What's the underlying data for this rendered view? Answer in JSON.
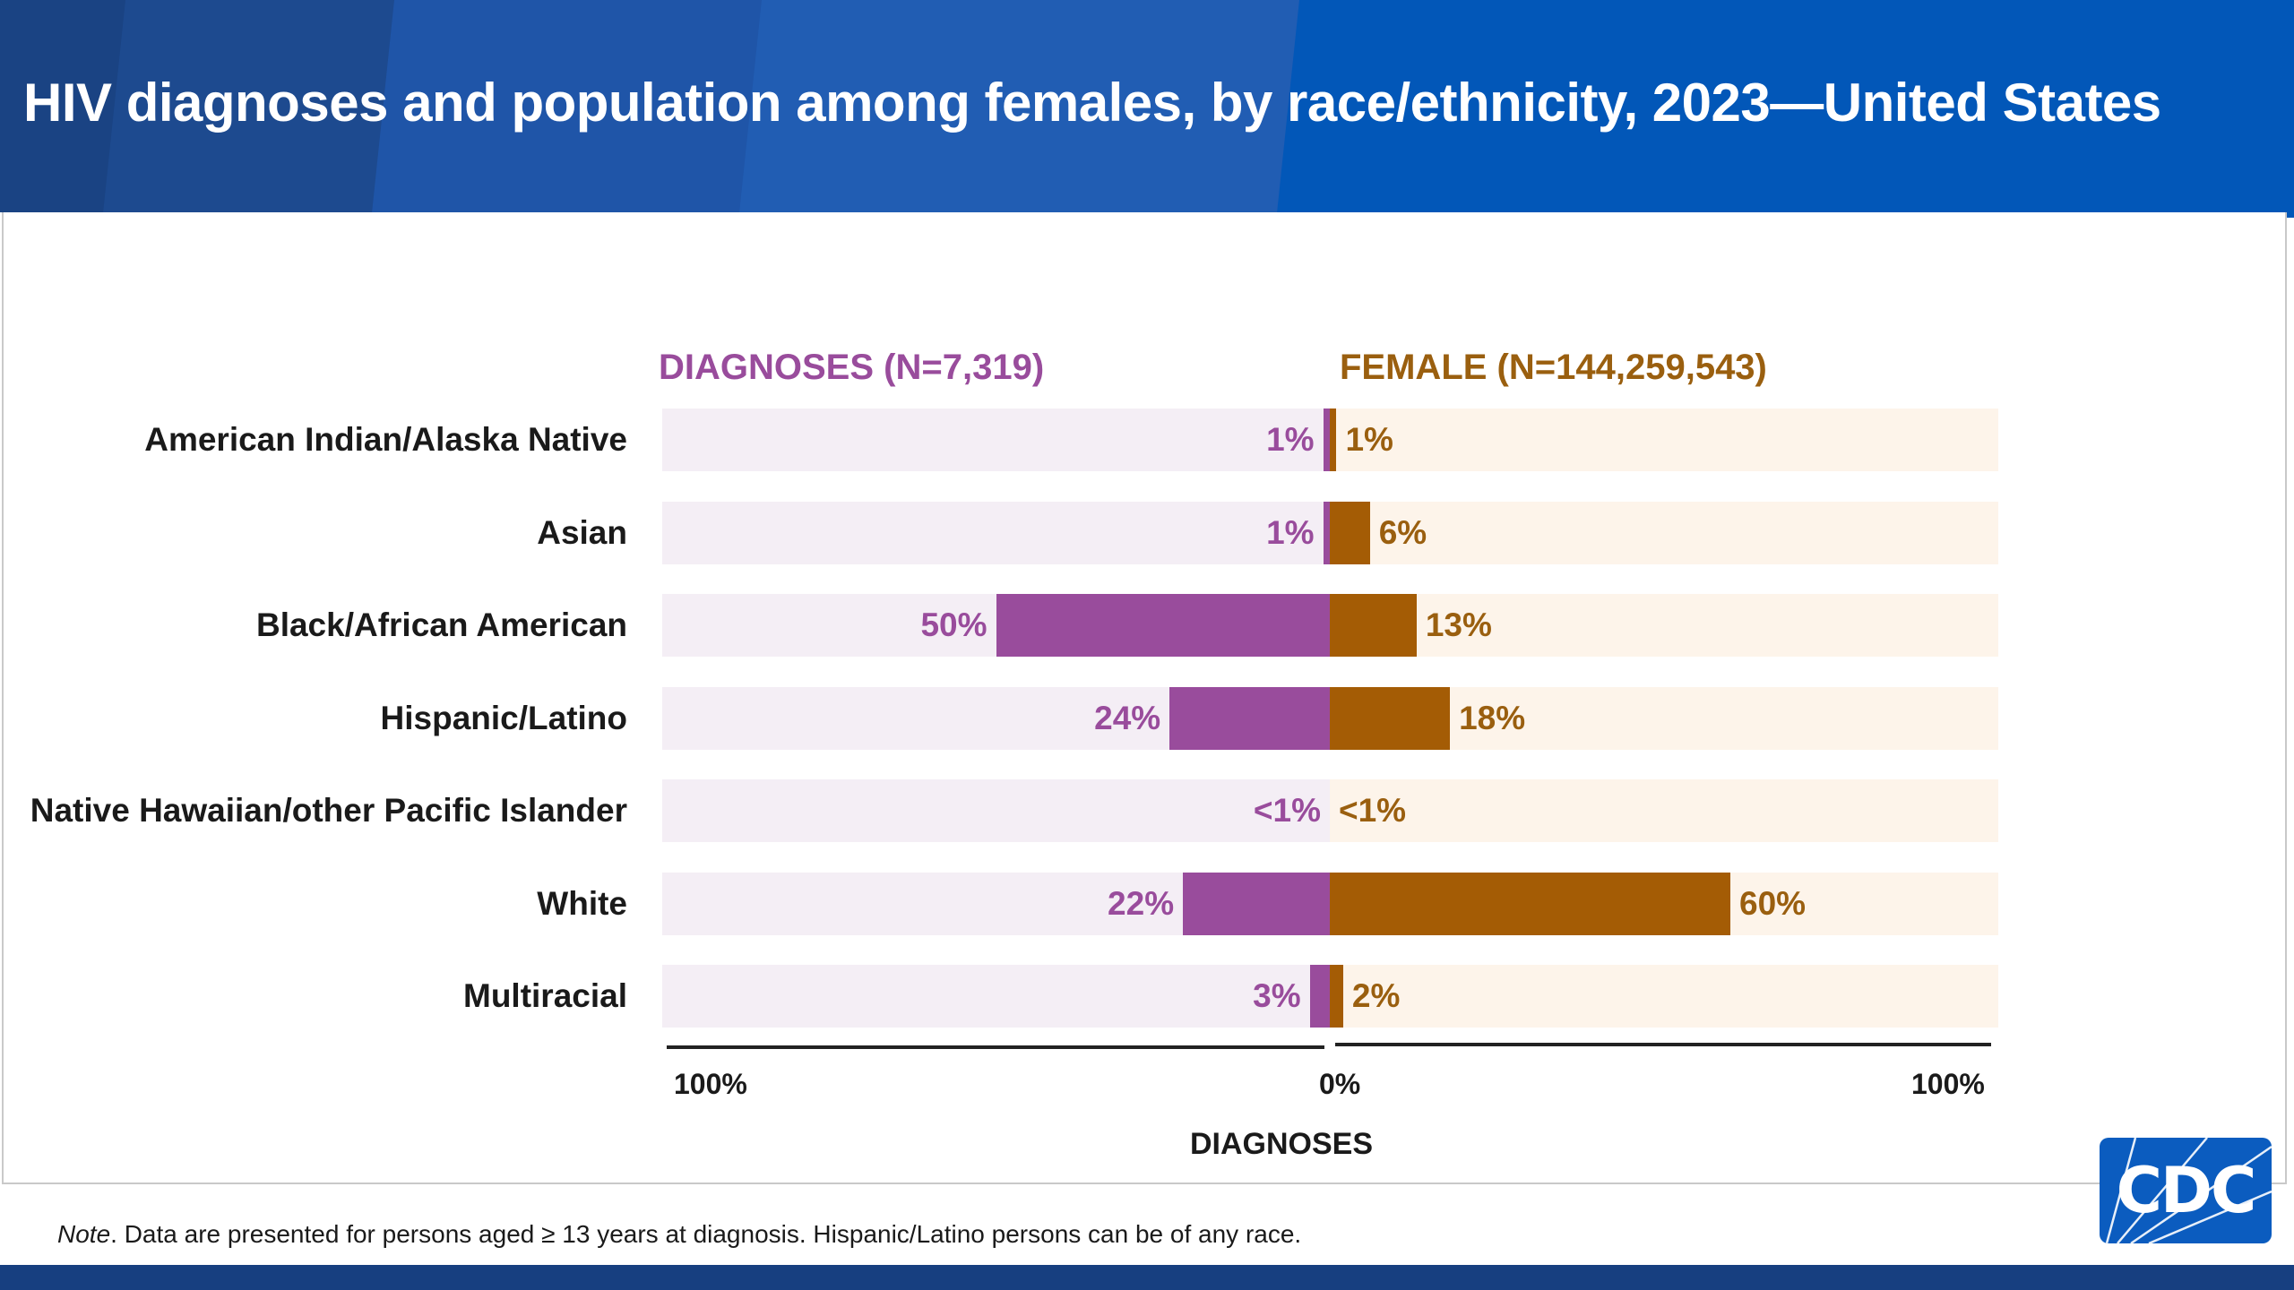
{
  "header": {
    "title": "HIV diagnoses and population among females, by race/ethnicity, 2023—United States"
  },
  "colors": {
    "diagnoses": "#994c9c",
    "diagnoses_track": "#f4eef5",
    "diagnoses_text": "#994c9c",
    "population": "#a45c05",
    "population_track": "#fdf4ea",
    "population_text": "#9a5f0f",
    "header_bg": "#0257b8"
  },
  "chart_data": {
    "type": "bar",
    "orientation": "horizontal-diverging",
    "title": "HIV diagnoses and population among females, by race/ethnicity, 2023—United States",
    "categories": [
      "American Indian/Alaska Native",
      "Asian",
      "Black/African American",
      "Hispanic/Latino",
      "Native Hawaiian/other Pacific Islander",
      "White",
      "Multiracial"
    ],
    "series": [
      {
        "name": "DIAGNOSES (N=7,319)",
        "side": "left",
        "values": [
          1,
          1,
          50,
          24,
          0.3,
          22,
          3
        ],
        "labels": [
          "1%",
          "1%",
          "50%",
          "24%",
          "<1%",
          "22%",
          "3%"
        ]
      },
      {
        "name": "FEMALE (N=144,259,543)",
        "side": "right",
        "values": [
          1,
          6,
          13,
          18,
          0.2,
          60,
          2
        ],
        "labels": [
          "1%",
          "6%",
          "13%",
          "18%",
          "<1%",
          "60%",
          "2%"
        ]
      }
    ],
    "xlabel": "DIAGNOSES",
    "x_ticks": [
      "100%",
      "0%",
      "100%"
    ],
    "xlim": [
      -100,
      100
    ],
    "units": "percent",
    "grid": false
  },
  "note": {
    "prefix": "Note",
    "text": ". Data are presented for persons aged ≥ 13 years at diagnosis. Hispanic/Latino persons can be of any race."
  },
  "logo": {
    "text": "CDC"
  }
}
